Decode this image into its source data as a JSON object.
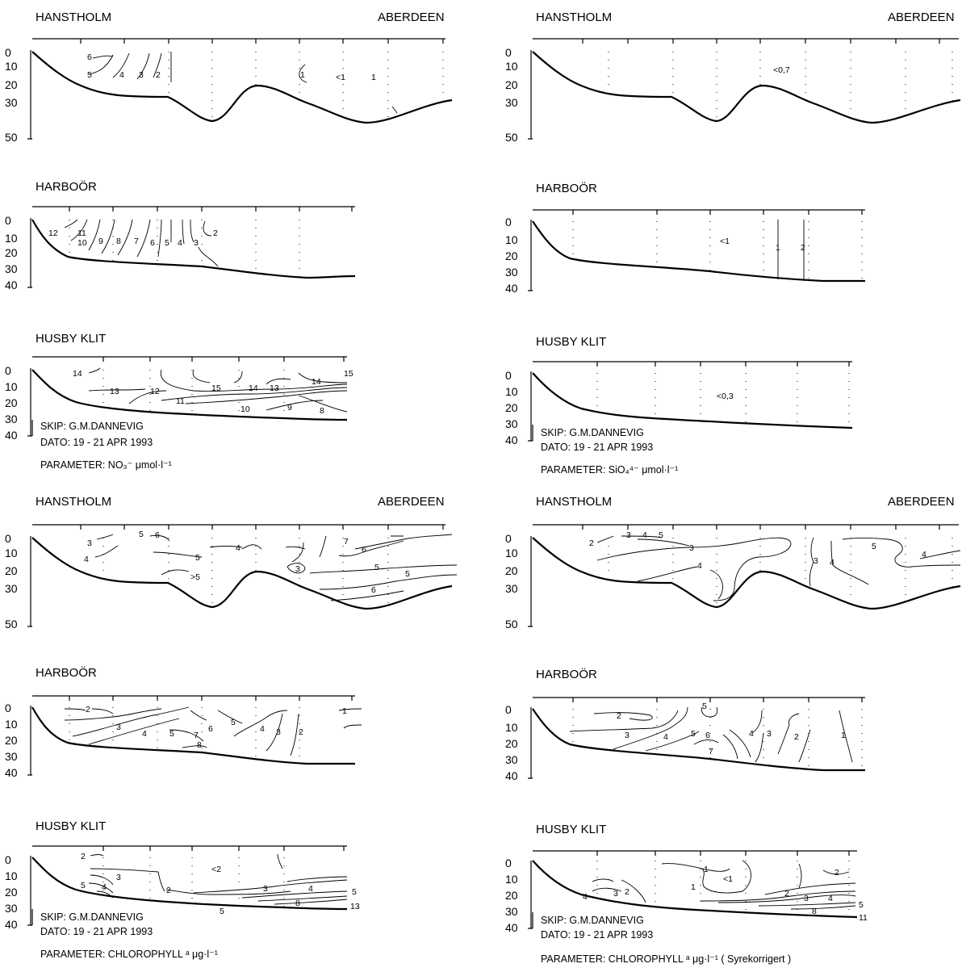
{
  "panels": [
    {
      "sections": [
        {
          "title": "HANSTHOLM",
          "right_title": "ABERDEEN",
          "yticks": [
            "0",
            "10",
            "20",
            "30",
            "50"
          ],
          "labels": [
            "6",
            "5",
            "4",
            "3",
            "2",
            "1",
            "<1",
            "1"
          ]
        },
        {
          "title": "HARBOÖR",
          "yticks": [
            "0",
            "10",
            "20",
            "30",
            "40"
          ],
          "labels": [
            "12",
            "11",
            "10",
            "9",
            "8",
            "7",
            "6",
            "5",
            "4",
            "3",
            "2"
          ]
        },
        {
          "title": "HUSBY KLIT",
          "yticks": [
            "0",
            "10",
            "20",
            "30",
            "40"
          ],
          "labels": [
            "14",
            "13",
            "12",
            "11",
            "10",
            "15",
            "14",
            "13",
            "9",
            "8",
            "14",
            "15"
          ]
        }
      ],
      "info": {
        "ship": "SKIP: G.M.DANNEVIG",
        "date": "DATO: 19 - 21 APR 1993",
        "parameter": "PARAMETER: NO₃⁻  μmol·l⁻¹"
      }
    },
    {
      "sections": [
        {
          "title": "HANSTHOLM",
          "right_title": "ABERDEEN",
          "yticks": [
            "0",
            "10",
            "20",
            "30",
            "50"
          ],
          "labels": [
            "<0,7"
          ]
        },
        {
          "title": "HARBOÖR",
          "yticks": [
            "0",
            "10",
            "20",
            "30",
            "40"
          ],
          "labels": [
            "<1",
            "1",
            "2"
          ]
        },
        {
          "title": "HUSBY KLIT",
          "yticks": [
            "0",
            "10",
            "20",
            "30",
            "40"
          ],
          "labels": [
            "<0,3"
          ]
        }
      ],
      "info": {
        "ship": "SKIP: G.M.DANNEVIG",
        "date": "DATO: 19 - 21 APR 1993",
        "parameter": "PARAMETER: SiO₄⁴⁻  μmol·l⁻¹"
      }
    },
    {
      "sections": [
        {
          "title": "HANSTHOLM",
          "right_title": "ABERDEEN",
          "yticks": [
            "0",
            "10",
            "20",
            "30",
            "50"
          ],
          "labels": [
            "3",
            "4",
            "5",
            "6",
            "5",
            "4",
            ">5",
            "3",
            "7",
            "6",
            "5",
            "5",
            "6"
          ]
        },
        {
          "title": "HARBOÖR",
          "yticks": [
            "0",
            "10",
            "20",
            "30",
            "40"
          ],
          "labels": [
            "2",
            "3",
            "4",
            "5",
            "7",
            "8",
            "6",
            "5",
            "4",
            "3",
            "2",
            "1"
          ]
        },
        {
          "title": "HUSBY KLIT",
          "yticks": [
            "0",
            "10",
            "20",
            "30",
            "40"
          ],
          "labels": [
            "2",
            "3",
            "4",
            "5",
            "2",
            "<2",
            "3",
            "4",
            "8",
            "5",
            "13",
            "5"
          ]
        }
      ],
      "info": {
        "ship": "SKIP: G.M.DANNEVIG",
        "date": "DATO: 19 - 21 APR 1993",
        "parameter": "PARAMETER: CHLOROPHYLL ᵃ μg·l⁻¹"
      }
    },
    {
      "sections": [
        {
          "title": "HANSTHOLM",
          "right_title": "ABERDEEN",
          "yticks": [
            "0",
            "10",
            "20",
            "30",
            "50"
          ],
          "labels": [
            "2",
            "3",
            "4",
            "5",
            "3",
            "4",
            "3",
            "4",
            "5",
            "4"
          ]
        },
        {
          "title": "HARBOÖR",
          "yticks": [
            "0",
            "10",
            "20",
            "30",
            "40"
          ],
          "labels": [
            "5",
            "2",
            "3",
            "4",
            "5",
            "6",
            "7",
            "4",
            "3",
            "2",
            "1"
          ]
        },
        {
          "title": "HUSBY KLIT",
          "yticks": [
            "0",
            "10",
            "20",
            "30",
            "40"
          ],
          "labels": [
            "1",
            "<1",
            "1",
            "4",
            "3",
            "2",
            "2",
            "3",
            "4",
            "2",
            "8",
            "5",
            "11"
          ]
        }
      ],
      "info": {
        "ship": "SKIP: G.M.DANNEVIG",
        "date": "DATO: 19 - 21 APR 1993",
        "parameter": "PARAMETER: CHLOROPHYLL ᵃ μg·l⁻¹   ( Syrekorrigert )"
      }
    }
  ]
}
